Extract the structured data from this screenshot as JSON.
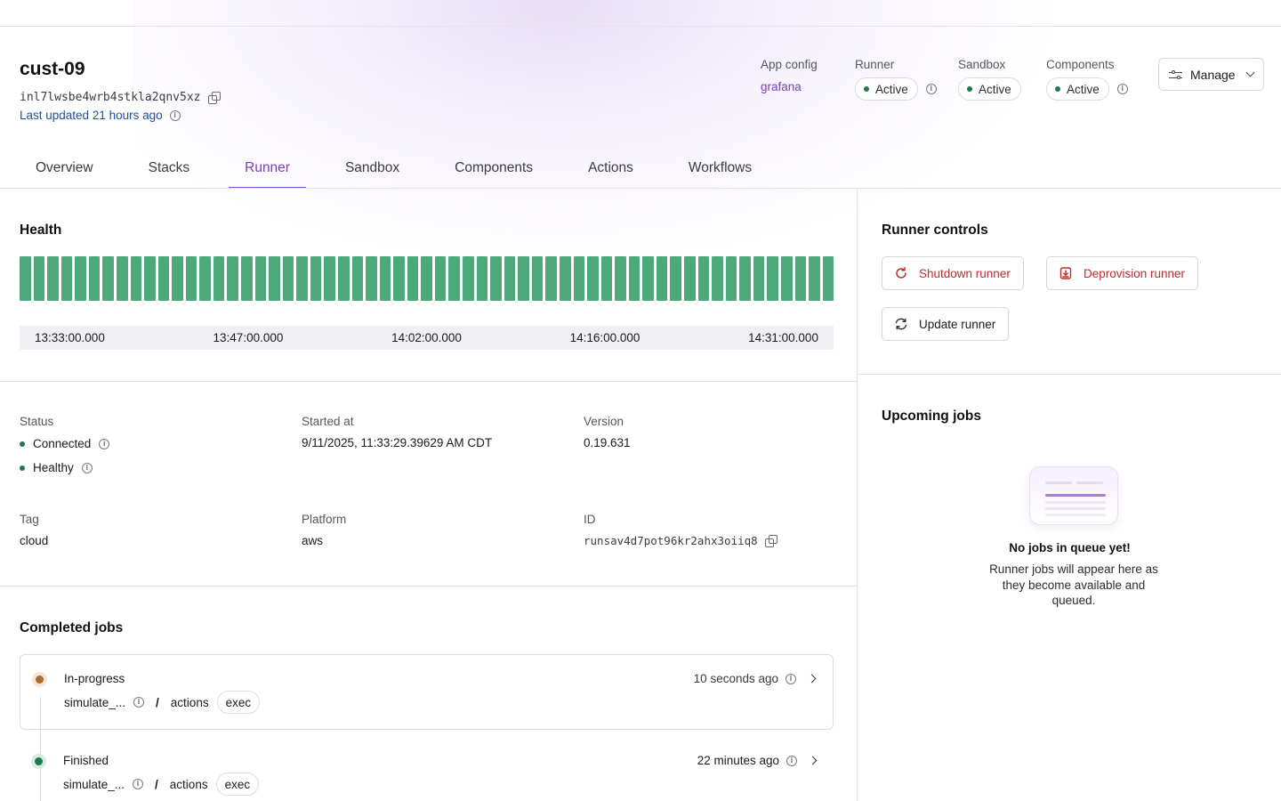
{
  "header": {
    "title": "cust-09",
    "install_id": "inl7lwsbe4wrb4stkla2qnv5xz",
    "last_updated": "Last updated 21 hours ago",
    "app_config": {
      "label": "App config",
      "value": "grafana"
    },
    "runner": {
      "label": "Runner",
      "status": "Active"
    },
    "sandbox": {
      "label": "Sandbox",
      "status": "Active"
    },
    "components": {
      "label": "Components",
      "status": "Active"
    },
    "manage_label": "Manage"
  },
  "tabs": [
    {
      "label": "Overview",
      "active": false
    },
    {
      "label": "Stacks",
      "active": false
    },
    {
      "label": "Runner",
      "active": true
    },
    {
      "label": "Sandbox",
      "active": false
    },
    {
      "label": "Components",
      "active": false
    },
    {
      "label": "Actions",
      "active": false
    },
    {
      "label": "Workflows",
      "active": false
    }
  ],
  "health": {
    "title": "Health",
    "bar_count": 59,
    "bar_status": "healthy",
    "bar_color": "#4ea97a",
    "ticks": [
      "13:33:00.000",
      "13:47:00.000",
      "14:02:00.000",
      "14:16:00.000",
      "14:31:00.000"
    ]
  },
  "details": {
    "status": {
      "label": "Status",
      "connected": "Connected",
      "healthy": "Healthy"
    },
    "started_at": {
      "label": "Started at",
      "value": "9/11/2025, 11:33:29.39629 AM CDT"
    },
    "version": {
      "label": "Version",
      "value": "0.19.631"
    },
    "tag": {
      "label": "Tag",
      "value": "cloud"
    },
    "platform": {
      "label": "Platform",
      "value": "aws"
    },
    "id": {
      "label": "ID",
      "value": "runsav4d7pot96kr2ahx3oiiq8"
    }
  },
  "completed_jobs": {
    "title": "Completed jobs",
    "items": [
      {
        "state": "In-progress",
        "name": "simulate_...",
        "group": "actions",
        "type": "exec",
        "time": "10 seconds ago",
        "color": "#a86a2e"
      },
      {
        "state": "Finished",
        "name": "simulate_...",
        "group": "actions",
        "type": "exec",
        "time": "22 minutes ago",
        "color": "#1f7a4a"
      }
    ]
  },
  "runner_controls": {
    "title": "Runner controls",
    "shutdown": "Shutdown runner",
    "deprovision": "Deprovision runner",
    "update": "Update runner"
  },
  "upcoming_jobs": {
    "title": "Upcoming jobs",
    "empty_title": "No jobs in queue yet!",
    "empty_desc": "Runner jobs will appear here as they become available and queued."
  },
  "colors": {
    "accent": "#7a3dc0",
    "healthy": "#4ea97a",
    "status_dot": "#1f7a4a",
    "danger": "#c42b2b"
  }
}
